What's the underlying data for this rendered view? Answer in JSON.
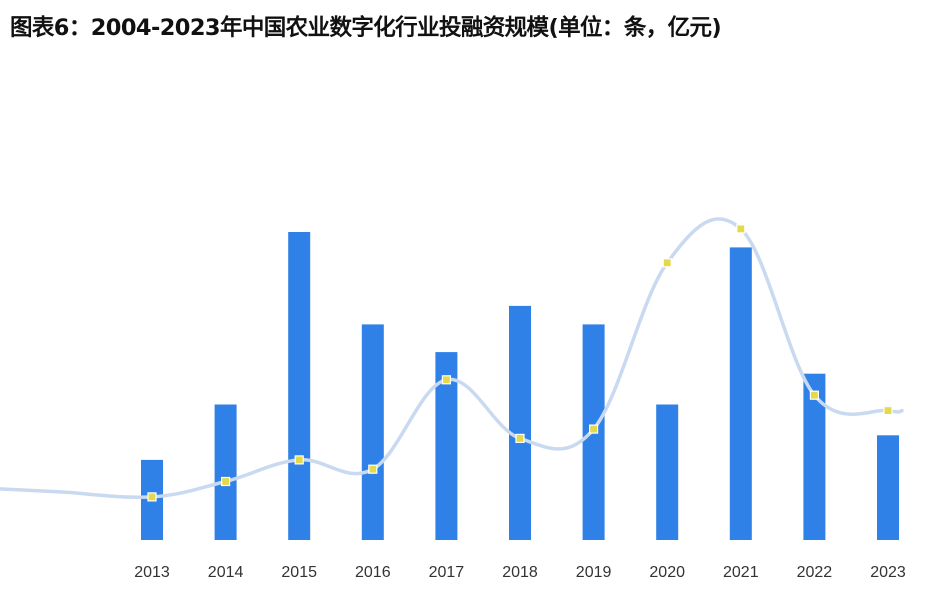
{
  "title": "图表6：2004-2023年中国农业数字化行业投融资规模(单位：条，亿元)",
  "chart_data": {
    "type": "bar",
    "title": "图表6：2004-2023年中国农业数字化行业投融资规模(单位：条，亿元)",
    "categories": [
      "2013",
      "2014",
      "2015",
      "2016",
      "2017",
      "2018",
      "2019",
      "2020",
      "2021",
      "2022",
      "2023"
    ],
    "series": [
      {
        "type": "bar",
        "values": [
          26,
          44,
          100,
          70,
          61,
          76,
          70,
          44,
          95,
          54,
          34
        ]
      },
      {
        "type": "line",
        "smooth": true,
        "values": [
          14,
          19,
          26,
          23,
          52,
          33,
          36,
          90,
          101,
          47,
          42
        ]
      }
    ],
    "ylim": [
      0,
      110
    ],
    "grid": false,
    "legend": false,
    "colors": {
      "bar": "#2f80e7",
      "line": "#c9d9f0",
      "marker": "#e3d94a"
    }
  }
}
